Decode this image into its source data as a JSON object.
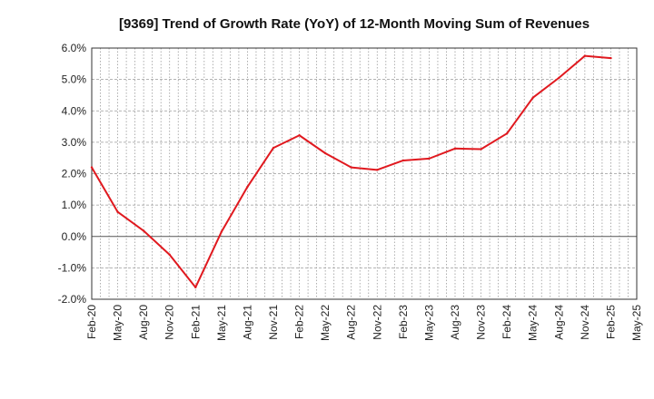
{
  "chart_data": {
    "type": "line",
    "title": "[9369]  Trend of Growth Rate (YoY) of 12-Month Moving Sum of Revenues",
    "xlabel": "",
    "ylabel": "",
    "x_tick_labels": [
      "Feb-20",
      "May-20",
      "Aug-20",
      "Nov-20",
      "Feb-21",
      "May-21",
      "Aug-21",
      "Nov-21",
      "Feb-22",
      "May-22",
      "Aug-22",
      "Nov-22",
      "Feb-23",
      "May-23",
      "Aug-23",
      "Nov-23",
      "Feb-24",
      "May-24",
      "Aug-24",
      "Nov-24",
      "Feb-25",
      "May-25"
    ],
    "y_tick_labels": [
      "6.0%",
      "5.0%",
      "4.0%",
      "3.0%",
      "2.0%",
      "1.0%",
      "0.0%",
      "-1.0%",
      "-2.0%"
    ],
    "y_ticks": [
      6,
      5,
      4,
      3,
      2,
      1,
      0,
      -1,
      -2
    ],
    "ylim": [
      -2,
      6
    ],
    "grid": true,
    "line_color": "#e0191f",
    "series": [
      {
        "values": [
          2.2,
          0.78,
          0.18,
          -0.58,
          -1.62,
          0.15,
          1.58,
          2.82,
          3.22,
          2.65,
          2.2,
          2.12,
          2.42,
          2.48,
          2.8,
          2.78,
          3.28,
          4.42,
          5.05,
          5.75,
          5.68
        ]
      }
    ]
  }
}
